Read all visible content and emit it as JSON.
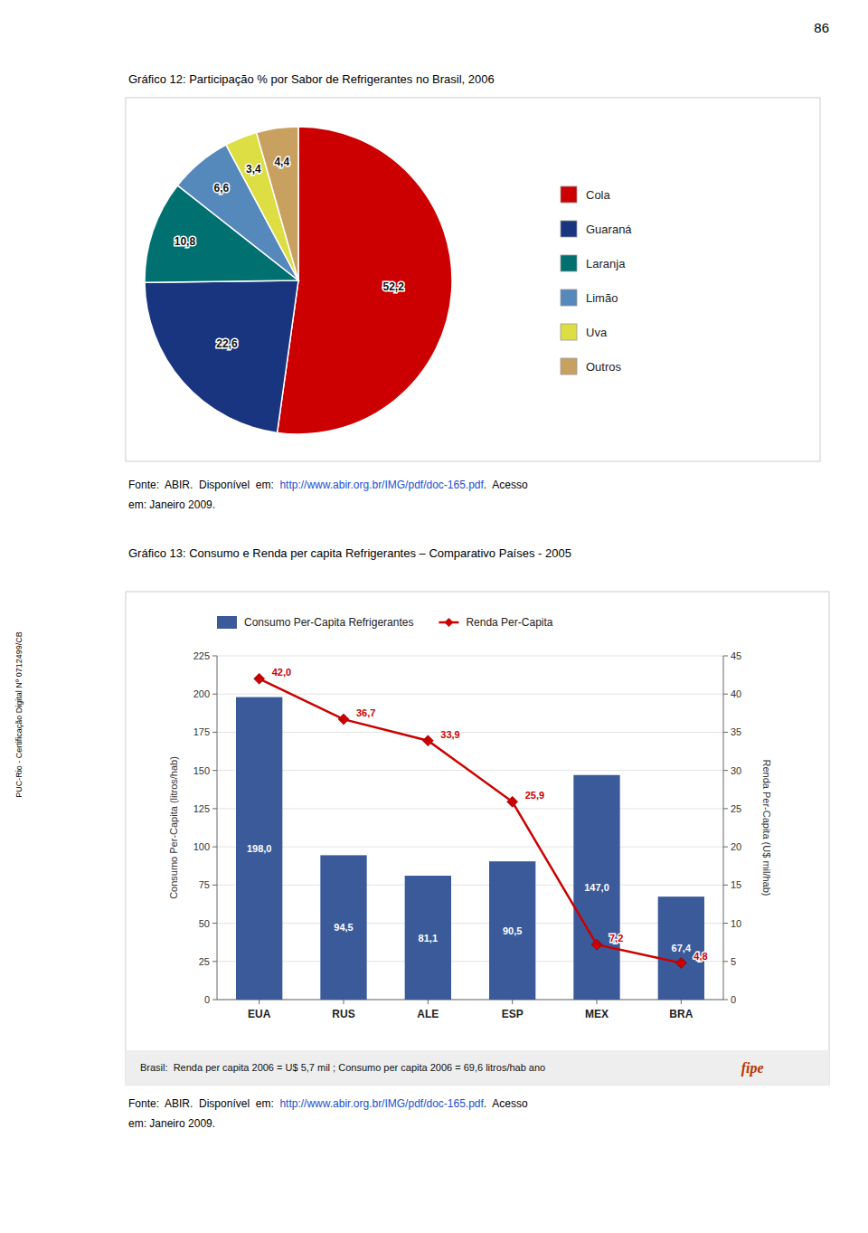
{
  "chart_data": [
    {
      "type": "pie",
      "title": "Gráfico 12: Participação % por Sabor de Refrigerantes no Brasil, 2006",
      "categories": [
        "Cola",
        "Guaraná",
        "Laranja",
        "Limão",
        "Uva",
        "Outros"
      ],
      "values": [
        52.2,
        22.6,
        10.8,
        6.6,
        3.4,
        4.4
      ],
      "value_labels": [
        "52,2",
        "22,6",
        "10,8",
        "6,6",
        "3,4",
        "4,4"
      ],
      "colors": [
        "#cc0000",
        "#1a3580",
        "#007070",
        "#5588bb",
        "#dddd44",
        "#c8a060"
      ],
      "data_labels": true,
      "legend": "right",
      "annotations": [
        "86",
        "PUC-Rio - Certificação Digital Nº 0712499/CB",
        "Fonte:  ABIR.  Disponível  em:  ",
        "http://www.abir.org.br/IMG/pdf/doc-165.pdf",
        ".  Acesso",
        "em: Janeiro 2009."
      ]
    },
    {
      "type": "bar",
      "title": "Gráfico 13: Consumo e Renda per capita Refrigerantes – Comparativo Países - 2005",
      "categories": [
        "EUA",
        "RUS",
        "ALE",
        "ESP",
        "MEX",
        "BRA"
      ],
      "series": [
        {
          "name": "Consumo Per-Capita Refrigerantes",
          "type": "bar",
          "color": "#3a5a9a",
          "values": [
            198.0,
            94.5,
            81.1,
            90.5,
            147.0,
            67.4
          ],
          "value_labels": [
            "198,0",
            "94,5",
            "81,1",
            "90,5",
            "147,0",
            "67,4"
          ]
        },
        {
          "name": "Renda Per-Capita",
          "type": "line",
          "axis": "y2",
          "color": "#cc0000",
          "marker": "diamond",
          "values": [
            42.0,
            36.7,
            33.9,
            25.9,
            7.2,
            4.8
          ],
          "value_labels": [
            "42,0",
            "36,7",
            "33,9",
            "25,9",
            "7,2",
            "4,8"
          ]
        }
      ],
      "y_label": "Consumo Per-Capita (litros/hab)",
      "y2_label": "Renda Per-Capita (U$ mil/hab)",
      "ylim": [
        0,
        225
      ],
      "yticks": [
        0,
        25,
        50,
        75,
        100,
        125,
        150,
        175,
        200,
        225
      ],
      "y2lim": [
        0,
        45
      ],
      "y2ticks": [
        0,
        5,
        10,
        15,
        20,
        25,
        30,
        35,
        40,
        45
      ],
      "grid": true,
      "data_labels": true,
      "legend": "top",
      "annotations": [
        "Brasil:  Renda per capita 2006 = U$ 5,7 mil ; Consumo per capita 2006 = 69,6 litros/hab ano",
        "fipe",
        "Fonte:  ABIR.  Disponível  em:  ",
        "http://www.abir.org.br/IMG/pdf/doc-165.pdf",
        ".  Acesso",
        "em: Janeiro 2009."
      ]
    }
  ]
}
